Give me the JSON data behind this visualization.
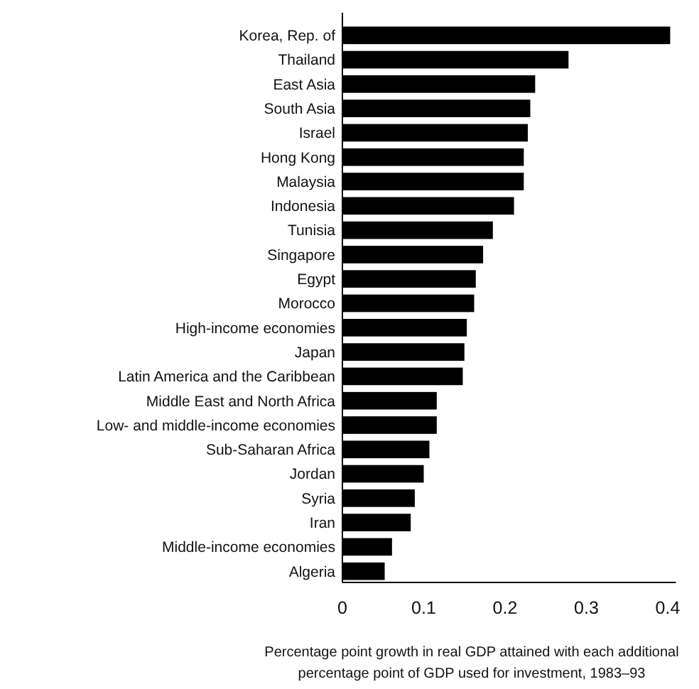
{
  "chart_data": {
    "type": "bar",
    "orientation": "horizontal",
    "xlabel": "Percentage point growth in real GDP attained with each additional percentage point of GDP used for investment, 1983–93",
    "categories": [
      "Korea, Rep. of",
      "Thailand",
      "East Asia",
      "South Asia",
      "Israel",
      "Hong Kong",
      "Malaysia",
      "Indonesia",
      "Tunisia",
      "Singapore",
      "Egypt",
      "Morocco",
      "High-income economies",
      "Japan",
      "Latin America and the Caribbean",
      "Middle East and North Africa",
      "Low- and middle-income economies",
      "Sub-Saharan Africa",
      "Jordan",
      "Syria",
      "Iran",
      "Middle-income economies",
      "Algeria"
    ],
    "values": [
      0.403,
      0.278,
      0.237,
      0.231,
      0.228,
      0.223,
      0.223,
      0.211,
      0.185,
      0.173,
      0.164,
      0.162,
      0.153,
      0.15,
      0.148,
      0.116,
      0.116,
      0.107,
      0.1,
      0.089,
      0.084,
      0.061,
      0.052
    ],
    "color": "#000000",
    "xlim": [
      0,
      0.41
    ],
    "xticks": [
      {
        "value": 0,
        "label": "0"
      },
      0.1,
      0.2,
      0.3,
      0.4
    ],
    "grid": false
  }
}
